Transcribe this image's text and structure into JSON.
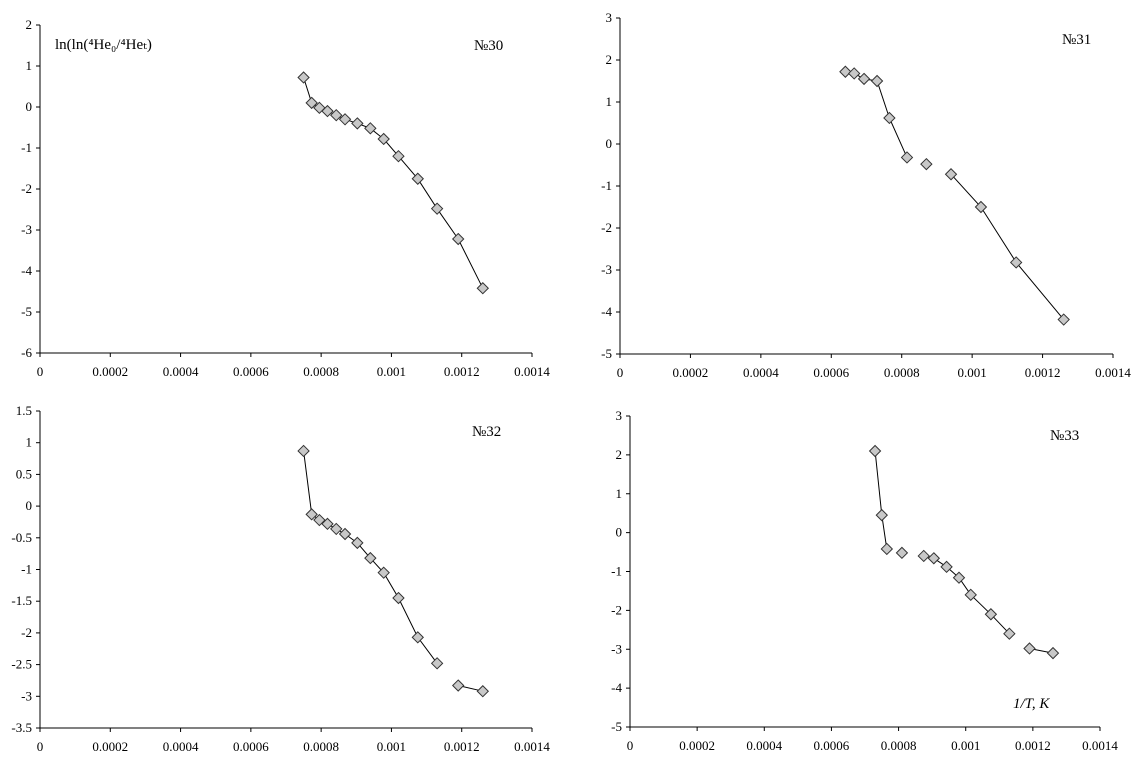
{
  "chart_data": [
    {
      "type": "line",
      "label": "№30",
      "ylabel": "ln(ln(⁴He₀/⁴Heₜ)",
      "xlim": [
        0,
        0.0014
      ],
      "ylim": [
        -6,
        2
      ],
      "xticks": [
        0,
        0.0002,
        0.0004,
        0.0006,
        0.0008,
        0.001,
        0.0012,
        0.0014
      ],
      "xtick_labels": [
        "0",
        "0.0002",
        "0.0004",
        "0.0006",
        "0.0008",
        "0.001",
        "0.0012",
        "0.0014"
      ],
      "yticks": [
        -6,
        -5,
        -4,
        -3,
        -2,
        -1,
        0,
        1,
        2
      ],
      "ytick_labels": [
        "-6",
        "-5",
        "-4",
        "-3",
        "-2",
        "-1",
        "0",
        "1",
        "2"
      ],
      "series": [
        {
          "x": [
            0.00075,
            0.000773,
            0.000795,
            0.000818,
            0.000843,
            0.000868,
            0.000903,
            0.00094,
            0.000978,
            0.00102,
            0.001075,
            0.00113,
            0.00119,
            0.00126
          ],
          "y": [
            0.72,
            0.1,
            -0.02,
            -0.1,
            -0.2,
            -0.3,
            -0.4,
            -0.52,
            -0.78,
            -1.2,
            -1.75,
            -2.48,
            -3.22,
            -4.42
          ]
        }
      ]
    },
    {
      "type": "line",
      "label": "№31",
      "xlim": [
        0,
        0.0014
      ],
      "ylim": [
        -5,
        3
      ],
      "xticks": [
        0,
        0.0002,
        0.0004,
        0.0006,
        0.0008,
        0.001,
        0.0012,
        0.0014
      ],
      "xtick_labels": [
        "0",
        "0.0002",
        "0.0004",
        "0.0006",
        "0.0008",
        "0.001",
        "0.0012",
        "0.0014"
      ],
      "yticks": [
        -5,
        -4,
        -3,
        -2,
        -1,
        0,
        1,
        2,
        3
      ],
      "ytick_labels": [
        "-5",
        "-4",
        "-3",
        "-2",
        "-1",
        "0",
        "1",
        "2",
        "3"
      ],
      "series": [
        {
          "x": [
            0.00064,
            0.000665,
            0.000693,
            0.00073,
            0.000765,
            0.000815
          ],
          "y": [
            1.72,
            1.68,
            1.55,
            1.5,
            0.62,
            -0.32
          ]
        },
        {
          "x": [
            0.00087
          ],
          "y": [
            -0.48
          ]
        },
        {
          "x": [
            0.00094,
            0.001025,
            0.001125,
            0.00126
          ],
          "y": [
            -0.72,
            -1.5,
            -2.82,
            -4.18
          ]
        }
      ]
    },
    {
      "type": "line",
      "label": "№32",
      "xlim": [
        0,
        0.0014
      ],
      "ylim": [
        -3.5,
        1.5
      ],
      "xticks": [
        0,
        0.0002,
        0.0004,
        0.0006,
        0.0008,
        0.001,
        0.0012,
        0.0014
      ],
      "xtick_labels": [
        "0",
        "0.0002",
        "0.0004",
        "0.0006",
        "0.0008",
        "0.001",
        "0.0012",
        "0.0014"
      ],
      "yticks": [
        -3.5,
        -3,
        -2.5,
        -2,
        -1.5,
        -1,
        -0.5,
        0,
        0.5,
        1,
        1.5
      ],
      "ytick_labels": [
        "-3.5",
        "-3",
        "-2.5",
        "-2",
        "-1.5",
        "-1",
        "-0.5",
        "0",
        "0.5",
        "1",
        "1.5"
      ],
      "series": [
        {
          "x": [
            0.00075,
            0.000773,
            0.000795,
            0.000818,
            0.000843,
            0.000868,
            0.000903,
            0.00094,
            0.000978,
            0.00102,
            0.001075,
            0.00113
          ],
          "y": [
            0.87,
            -0.13,
            -0.22,
            -0.28,
            -0.36,
            -0.44,
            -0.58,
            -0.82,
            -1.05,
            -1.45,
            -2.07,
            -2.48
          ]
        },
        {
          "x": [
            0.00119,
            0.00126
          ],
          "y": [
            -2.83,
            -2.92
          ]
        }
      ]
    },
    {
      "type": "line",
      "label": "№33",
      "xlabel": "1/T, K",
      "xlim": [
        0,
        0.0014
      ],
      "ylim": [
        -5,
        3
      ],
      "xticks": [
        0,
        0.0002,
        0.0004,
        0.0006,
        0.0008,
        0.001,
        0.0012,
        0.0014
      ],
      "xtick_labels": [
        "0",
        "0.0002",
        "0.0004",
        "0.0006",
        "0.0008",
        "0.001",
        "0.0012",
        "0.0014"
      ],
      "yticks": [
        -5,
        -4,
        -3,
        -2,
        -1,
        0,
        1,
        2,
        3
      ],
      "ytick_labels": [
        "-5",
        "-4",
        "-3",
        "-2",
        "-1",
        "0",
        "1",
        "2",
        "3"
      ],
      "series": [
        {
          "x": [
            0.00073,
            0.00075,
            0.000765
          ],
          "y": [
            2.1,
            0.45,
            -0.42
          ]
        },
        {
          "x": [
            0.00081
          ],
          "y": [
            -0.52
          ]
        },
        {
          "x": [
            0.000875,
            0.000905,
            0.000943,
            0.00098,
            0.001015,
            0.001075,
            0.00113
          ],
          "y": [
            -0.6,
            -0.66,
            -0.88,
            -1.16,
            -1.6,
            -2.1,
            -2.6
          ]
        },
        {
          "x": [
            0.00119,
            0.00126
          ],
          "y": [
            -2.98,
            -3.1
          ]
        }
      ]
    }
  ]
}
